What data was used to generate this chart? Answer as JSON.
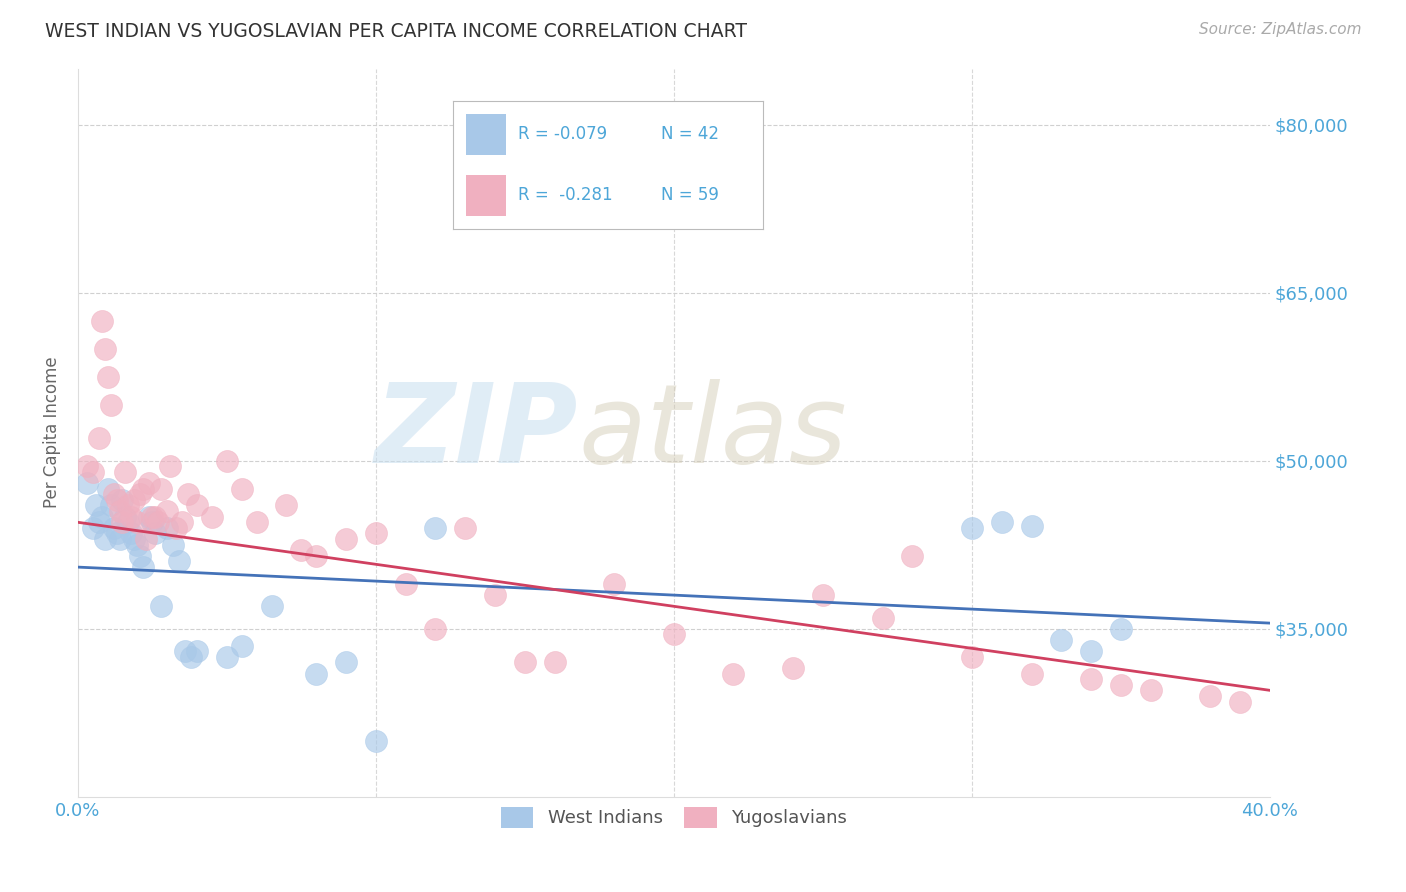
{
  "title": "WEST INDIAN VS YUGOSLAVIAN PER CAPITA INCOME CORRELATION CHART",
  "source": "Source: ZipAtlas.com",
  "ylabel": "Per Capita Income",
  "xlim": [
    0.0,
    0.4
  ],
  "ylim": [
    20000,
    85000
  ],
  "yticks": [
    35000,
    50000,
    65000,
    80000
  ],
  "ytick_labels": [
    "$35,000",
    "$50,000",
    "$65,000",
    "$80,000"
  ],
  "xticks": [
    0.0,
    0.1,
    0.2,
    0.3,
    0.4
  ],
  "xtick_labels": [
    "0.0%",
    "",
    "",
    "",
    "40.0%"
  ],
  "watermark_zip": "ZIP",
  "watermark_atlas": "atlas",
  "legend_label1": "West Indians",
  "legend_label2": "Yugoslavians",
  "color_blue": "#a8c8e8",
  "color_pink": "#f0b0c0",
  "color_blue_line": "#4472b8",
  "color_pink_line": "#d04060",
  "color_tick": "#4da6d8",
  "background": "#ffffff",
  "west_indians_x": [
    0.003,
    0.005,
    0.006,
    0.007,
    0.008,
    0.009,
    0.01,
    0.011,
    0.012,
    0.013,
    0.014,
    0.015,
    0.016,
    0.017,
    0.018,
    0.019,
    0.02,
    0.021,
    0.022,
    0.024,
    0.025,
    0.026,
    0.028,
    0.03,
    0.032,
    0.034,
    0.036,
    0.038,
    0.04,
    0.05,
    0.055,
    0.065,
    0.08,
    0.09,
    0.1,
    0.12,
    0.3,
    0.31,
    0.32,
    0.33,
    0.34,
    0.35
  ],
  "west_indians_y": [
    48000,
    44000,
    46000,
    44500,
    45000,
    43000,
    47500,
    46000,
    44000,
    43500,
    43000,
    46500,
    45000,
    44500,
    43500,
    43000,
    42500,
    41500,
    40500,
    45000,
    44500,
    43500,
    37000,
    44000,
    42500,
    41000,
    33000,
    32500,
    33000,
    32500,
    33500,
    37000,
    31000,
    32000,
    25000,
    44000,
    44000,
    44500,
    44200,
    34000,
    33000,
    35000
  ],
  "yugoslavians_x": [
    0.003,
    0.005,
    0.007,
    0.008,
    0.009,
    0.01,
    0.011,
    0.012,
    0.013,
    0.014,
    0.015,
    0.016,
    0.017,
    0.018,
    0.019,
    0.02,
    0.021,
    0.022,
    0.023,
    0.024,
    0.025,
    0.026,
    0.027,
    0.028,
    0.03,
    0.031,
    0.033,
    0.035,
    0.037,
    0.04,
    0.045,
    0.05,
    0.055,
    0.06,
    0.07,
    0.075,
    0.08,
    0.09,
    0.1,
    0.11,
    0.12,
    0.13,
    0.14,
    0.15,
    0.16,
    0.18,
    0.2,
    0.22,
    0.24,
    0.25,
    0.27,
    0.28,
    0.3,
    0.32,
    0.34,
    0.35,
    0.36,
    0.38,
    0.39
  ],
  "yugoslavians_y": [
    49500,
    49000,
    52000,
    62500,
    60000,
    57500,
    55000,
    47000,
    46500,
    45500,
    44500,
    49000,
    46000,
    45000,
    46500,
    44500,
    47000,
    47500,
    43000,
    48000,
    45000,
    45000,
    44500,
    47500,
    45500,
    49500,
    44000,
    44500,
    47000,
    46000,
    45000,
    50000,
    47500,
    44500,
    46000,
    42000,
    41500,
    43000,
    43500,
    39000,
    35000,
    44000,
    38000,
    32000,
    32000,
    39000,
    34500,
    31000,
    31500,
    38000,
    36000,
    41500,
    32500,
    31000,
    30500,
    30000,
    29500,
    29000,
    28500
  ]
}
